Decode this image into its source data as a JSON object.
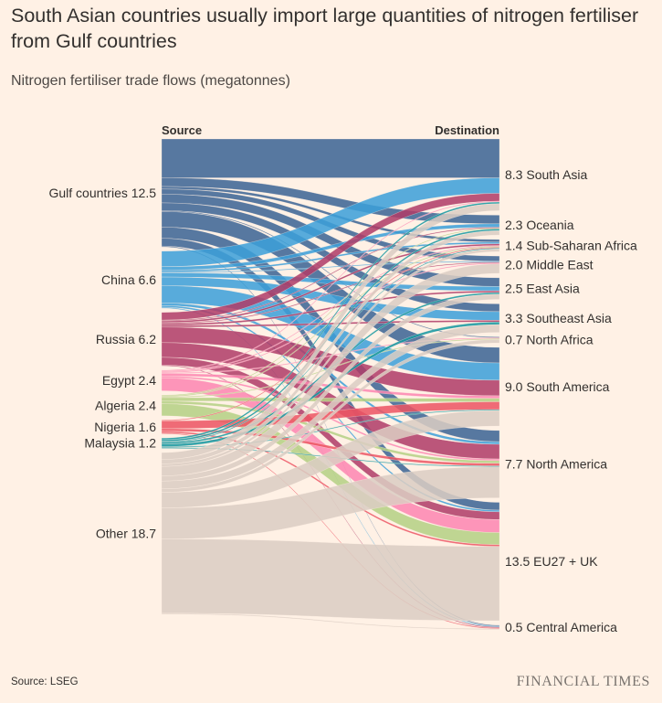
{
  "title_lines": [
    "South Asian countries usually import large quantities of nitrogen fertiliser",
    "from Gulf countries"
  ],
  "subtitle": "Nitrogen fertiliser trade flows (megatonnes)",
  "footnote": "Source: LSEG",
  "brand": "FINANCIAL TIMES",
  "colors": {
    "background": "#fff1e5",
    "text": "#33302e",
    "subtitle": "#4d4845",
    "brand": "#7a746f",
    "link_separator": "#fff1e5"
  },
  "chart_data": {
    "type": "sankey",
    "source_header": "Source",
    "destination_header": "Destination",
    "sources": [
      {
        "name": "Gulf countries",
        "value": 12.5,
        "color": "#3b6494"
      },
      {
        "name": "China",
        "value": 6.6,
        "color": "#3d9fd8"
      },
      {
        "name": "Russia",
        "value": 6.2,
        "color": "#b03d68"
      },
      {
        "name": "Egypt",
        "value": 2.4,
        "color": "#fd86b1"
      },
      {
        "name": "Algeria",
        "value": 2.4,
        "color": "#b4d184"
      },
      {
        "name": "Nigeria",
        "value": 1.6,
        "color": "#ec5563"
      },
      {
        "name": "Malaysia",
        "value": 1.2,
        "color": "#1497a0"
      },
      {
        "name": "Other",
        "value": 18.7,
        "color": "#dbcdc2"
      }
    ],
    "destinations": [
      {
        "name": "South Asia",
        "value": 8.3
      },
      {
        "name": "Oceania",
        "value": 2.3
      },
      {
        "name": "Sub-Saharan Africa",
        "value": 1.4
      },
      {
        "name": "Middle East",
        "value": 2.0
      },
      {
        "name": "East Asia",
        "value": 2.5
      },
      {
        "name": "Southeast Asia",
        "value": 3.3
      },
      {
        "name": "North Africa",
        "value": 0.7
      },
      {
        "name": "South America",
        "value": 9.0
      },
      {
        "name": "North America",
        "value": 7.7
      },
      {
        "name": "EU27 + UK",
        "value": 13.5
      },
      {
        "name": "Central America",
        "value": 0.5
      }
    ],
    "flows": [
      {
        "source": "Gulf countries",
        "values": [
          4.5,
          1.0,
          0.3,
          0.6,
          1.0,
          0.9,
          0.1,
          1.8,
          1.3,
          0.9,
          0.1
        ]
      },
      {
        "source": "China",
        "values": [
          1.8,
          0.4,
          0.2,
          0.1,
          0.5,
          1.0,
          0.0,
          2.0,
          0.3,
          0.2,
          0.1
        ]
      },
      {
        "source": "Russia",
        "values": [
          0.9,
          0.1,
          0.2,
          0.1,
          0.2,
          0.2,
          0.0,
          1.8,
          1.7,
          0.9,
          0.1
        ]
      },
      {
        "source": "Egypt",
        "values": [
          0.1,
          0.0,
          0.1,
          0.1,
          0.0,
          0.0,
          0.1,
          0.3,
          0.2,
          1.5,
          0.0
        ]
      },
      {
        "source": "Algeria",
        "values": [
          0.0,
          0.1,
          0.1,
          0.0,
          0.0,
          0.0,
          0.1,
          0.4,
          0.3,
          1.4,
          0.0
        ]
      },
      {
        "source": "Nigeria",
        "values": [
          0.0,
          0.0,
          0.1,
          0.0,
          0.0,
          0.0,
          0.0,
          0.9,
          0.3,
          0.2,
          0.1
        ]
      },
      {
        "source": "Malaysia",
        "values": [
          0.2,
          0.2,
          0.1,
          0.0,
          0.2,
          0.3,
          0.0,
          0.1,
          0.1,
          0.0,
          0.0
        ]
      },
      {
        "source": "Other",
        "values": [
          0.8,
          0.5,
          0.3,
          1.1,
          0.6,
          0.9,
          0.4,
          1.8,
          3.6,
          8.6,
          0.1
        ]
      }
    ]
  }
}
